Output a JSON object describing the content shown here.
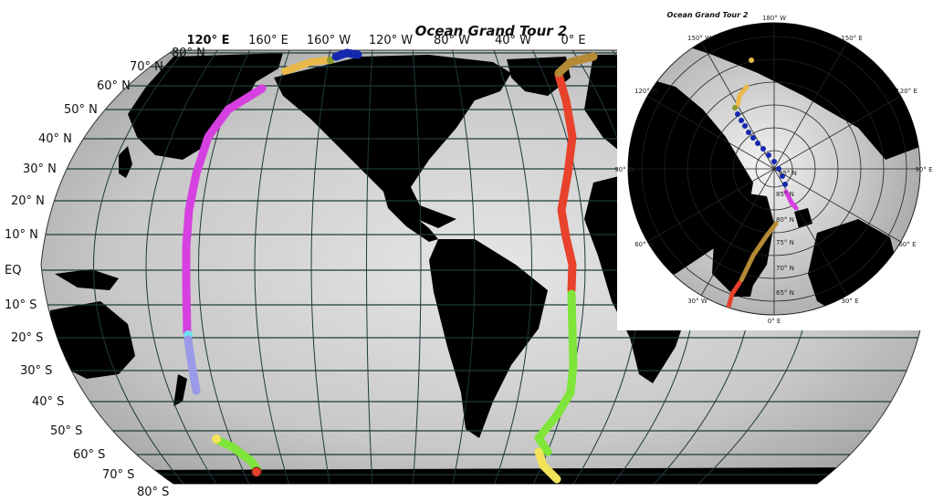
{
  "main_map": {
    "title": "Ocean Grand Tour 2",
    "lat_labels": [
      "80° N",
      "70° N",
      "60° N",
      "50° N",
      "40° N",
      "30° N",
      "20° N",
      "10° N",
      "EQ",
      "10° S",
      "20° S",
      "30° S",
      "40° S",
      "50° S",
      "60° S",
      "70° S",
      "80° S"
    ],
    "lon_labels": [
      "120° E",
      "160° E",
      "160° W",
      "120° W",
      "80° W",
      "40° W",
      "0° E"
    ],
    "colors": {
      "ocean_light": "#d8d8d8",
      "ocean_dark": "#9a9a9a",
      "land": "#000000",
      "graticule": "#1f3a3a"
    }
  },
  "inset_map": {
    "title": "Ocean Grand Tour 2",
    "lon_labels": [
      "180° W",
      "150° W",
      "120° W",
      "90° W",
      "60° W",
      "30° W",
      "0° E",
      "30° E",
      "60° E",
      "90° E",
      "120° E",
      "150° E"
    ],
    "lat_labels": [
      "85° N",
      "80° N",
      "75° N",
      "70° N",
      "65° N"
    ],
    "inset_lat_label_85": "85° N"
  },
  "track_colors": {
    "red": "#e8412c",
    "green": "#7fe53a",
    "yellow": "#f2e35a",
    "gold": "#b58a35",
    "orange": "#e8b84a",
    "olive": "#8c9a2a",
    "blue": "#1428b0",
    "magenta": "#d640e0",
    "cyan": "#6fe0ef",
    "lavender": "#9a9ae8"
  }
}
